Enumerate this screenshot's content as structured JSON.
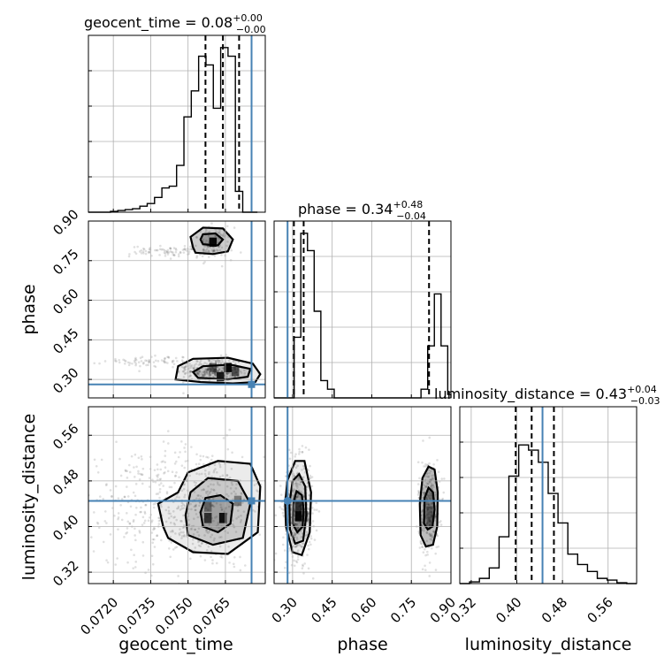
{
  "chart_data": {
    "type": "corner",
    "truth_color": "#4682b4",
    "parameters": [
      {
        "name": "geocent_time",
        "xlabel": "geocent_time",
        "title": {
          "prefix": "geocent_time = ",
          "median": "0.08",
          "plus": "+0.00",
          "minus": "−0.00"
        },
        "range": [
          0.071,
          0.0781
        ],
        "ticks": [
          {
            "v": 0.072,
            "label": "0.0720"
          },
          {
            "v": 0.0735,
            "label": "0.0735"
          },
          {
            "v": 0.075,
            "label": "0.0750"
          },
          {
            "v": 0.0765,
            "label": "0.0765"
          }
        ],
        "quantiles": [
          0.0757,
          0.0764,
          0.07705
        ],
        "truth": 0.07755,
        "hist": [
          0.0,
          0.0,
          0.0,
          0.005,
          0.01,
          0.015,
          0.02,
          0.035,
          0.05,
          0.085,
          0.14,
          0.15,
          0.27,
          0.55,
          0.7,
          0.9,
          0.85,
          0.6,
          0.95,
          0.9,
          0.12,
          0.0,
          0.0
        ],
        "hist_start": 0.071,
        "hist_width": 0.000295
      },
      {
        "name": "phase",
        "xlabel": "phase",
        "title": {
          "prefix": "phase = ",
          "median": "0.34",
          "plus": "+0.48",
          "minus": "−0.04"
        },
        "range": [
          0.23,
          0.9
        ],
        "ticks": [
          {
            "v": 0.3,
            "label": "0.30"
          },
          {
            "v": 0.45,
            "label": "0.45"
          },
          {
            "v": 0.6,
            "label": "0.60"
          },
          {
            "v": 0.75,
            "label": "0.75"
          },
          {
            "v": 0.9,
            "label": "0.90"
          }
        ],
        "quantiles": [
          0.305,
          0.342,
          0.817
        ],
        "truth": 0.281,
        "hist": [
          0.0,
          0.0,
          0.0,
          0.35,
          0.95,
          0.85,
          0.5,
          0.1,
          0.05,
          0.0,
          0.0,
          0.0,
          0.0,
          0.0,
          0.0,
          0.0,
          0.0,
          0.0,
          0.0,
          0.0,
          0.0,
          0.0,
          0.05,
          0.3,
          0.6,
          0.3,
          0.02
        ],
        "hist_start": 0.23,
        "hist_width": 0.0253
      },
      {
        "name": "luminosity_distance",
        "xlabel": "luminosity_distance",
        "title": {
          "prefix": "luminosity_distance = ",
          "median": "0.43",
          "plus": "+0.04",
          "minus": "−0.03"
        },
        "range": [
          0.3,
          0.61
        ],
        "ticks": [
          {
            "v": 0.32,
            "label": "0.32"
          },
          {
            "v": 0.4,
            "label": "0.40"
          },
          {
            "v": 0.48,
            "label": "0.48"
          },
          {
            "v": 0.56,
            "label": "0.56"
          }
        ],
        "quantiles": [
          0.398,
          0.426,
          0.465
        ],
        "truth": 0.445,
        "hist": [
          0.0,
          0.01,
          0.03,
          0.09,
          0.27,
          0.62,
          0.8,
          0.77,
          0.7,
          0.52,
          0.35,
          0.17,
          0.11,
          0.07,
          0.03,
          0.02,
          0.005,
          0.0
        ],
        "hist_start": 0.3,
        "hist_width": 0.01722
      }
    ],
    "pairs": [
      {
        "x": "geocent_time",
        "y": "phase",
        "clusters": [
          {
            "cx": 0.0759,
            "cy": 0.34,
            "sx": 0.0007,
            "sy": 0.022,
            "n": 240
          },
          {
            "cx": 0.0762,
            "cy": 0.325,
            "sx": 0.00045,
            "sy": 0.012,
            "n": 120
          },
          {
            "cx": 0.076,
            "cy": 0.815,
            "sx": 0.0004,
            "sy": 0.03,
            "n": 130
          },
          {
            "cx": 0.0743,
            "cy": 0.785,
            "sx": 0.0008,
            "sy": 0.01,
            "n": 80
          },
          {
            "cx": 0.0735,
            "cy": 0.37,
            "sx": 0.0009,
            "sy": 0.01,
            "n": 70
          }
        ],
        "contours": [
          [
            [
              0.0745,
              0.3
            ],
            [
              0.0755,
              0.29
            ],
            [
              0.0768,
              0.285
            ],
            [
              0.0777,
              0.29
            ],
            [
              0.0779,
              0.32
            ],
            [
              0.0776,
              0.36
            ],
            [
              0.0766,
              0.382
            ],
            [
              0.0752,
              0.378
            ],
            [
              0.0746,
              0.35
            ]
          ],
          [
            [
              0.0754,
              0.306
            ],
            [
              0.0766,
              0.3
            ],
            [
              0.0774,
              0.31
            ],
            [
              0.0775,
              0.34
            ],
            [
              0.0767,
              0.356
            ],
            [
              0.0756,
              0.35
            ],
            [
              0.0752,
              0.328
            ]
          ],
          [
            [
              0.0753,
              0.78
            ],
            [
              0.076,
              0.775
            ],
            [
              0.0766,
              0.785
            ],
            [
              0.0768,
              0.83
            ],
            [
              0.0764,
              0.872
            ],
            [
              0.0756,
              0.875
            ],
            [
              0.0751,
              0.84
            ],
            [
              0.0752,
              0.8
            ]
          ],
          [
            [
              0.0756,
              0.812
            ],
            [
              0.0762,
              0.808
            ],
            [
              0.0764,
              0.83
            ],
            [
              0.0761,
              0.853
            ],
            [
              0.0756,
              0.85
            ],
            [
              0.0755,
              0.83
            ]
          ]
        ],
        "bins": [
          {
            "x": 0.076,
            "y": 0.82,
            "w": 0.0003,
            "h": 0.035,
            "shade": 0.95
          },
          {
            "x": 0.0763,
            "y": 0.31,
            "w": 0.0003,
            "h": 0.035,
            "shade": 0.85
          },
          {
            "x": 0.0766,
            "y": 0.345,
            "w": 0.0003,
            "h": 0.035,
            "shade": 0.95
          },
          {
            "x": 0.0769,
            "y": 0.33,
            "w": 0.0003,
            "h": 0.035,
            "shade": 0.6
          },
          {
            "x": 0.076,
            "y": 0.345,
            "w": 0.0003,
            "h": 0.035,
            "shade": 0.5
          }
        ]
      },
      {
        "x": "geocent_time",
        "y": "luminosity_distance",
        "clusters": [
          {
            "cx": 0.0755,
            "cy": 0.435,
            "sx": 0.00125,
            "sy": 0.055,
            "n": 420
          },
          {
            "cx": 0.073,
            "cy": 0.44,
            "sx": 0.0015,
            "sy": 0.05,
            "n": 200
          }
        ],
        "contours": [
          [
            [
              0.0742,
              0.38
            ],
            [
              0.0752,
              0.355
            ],
            [
              0.0766,
              0.352
            ],
            [
              0.0778,
              0.39
            ],
            [
              0.0779,
              0.47
            ],
            [
              0.0775,
              0.51
            ],
            [
              0.0762,
              0.515
            ],
            [
              0.075,
              0.495
            ],
            [
              0.0746,
              0.46
            ],
            [
              0.0738,
              0.44
            ],
            [
              0.074,
              0.4
            ]
          ],
          [
            [
              0.075,
              0.385
            ],
            [
              0.076,
              0.368
            ],
            [
              0.0772,
              0.38
            ],
            [
              0.0775,
              0.44
            ],
            [
              0.077,
              0.48
            ],
            [
              0.0758,
              0.485
            ],
            [
              0.0751,
              0.46
            ],
            [
              0.0749,
              0.42
            ]
          ],
          [
            [
              0.0756,
              0.4
            ],
            [
              0.0762,
              0.39
            ],
            [
              0.0767,
              0.405
            ],
            [
              0.0768,
              0.44
            ],
            [
              0.0763,
              0.455
            ],
            [
              0.0757,
              0.45
            ],
            [
              0.0755,
              0.425
            ]
          ]
        ],
        "bins": [
          {
            "x": 0.0758,
            "y": 0.415,
            "w": 0.0003,
            "h": 0.018,
            "shade": 0.7
          },
          {
            "x": 0.0764,
            "y": 0.415,
            "w": 0.0003,
            "h": 0.018,
            "shade": 0.9
          },
          {
            "x": 0.077,
            "y": 0.445,
            "w": 0.0003,
            "h": 0.018,
            "shade": 0.4
          },
          {
            "x": 0.0758,
            "y": 0.435,
            "w": 0.0003,
            "h": 0.018,
            "shade": 0.4
          }
        ]
      },
      {
        "x": "phase",
        "y": "luminosity_distance",
        "clusters": [
          {
            "cx": 0.32,
            "cy": 0.43,
            "sx": 0.028,
            "sy": 0.042,
            "n": 520
          },
          {
            "cx": 0.817,
            "cy": 0.435,
            "sx": 0.02,
            "sy": 0.042,
            "n": 320
          }
        ],
        "contours": [
          [
            [
              0.275,
              0.4
            ],
            [
              0.3,
              0.355
            ],
            [
              0.335,
              0.35
            ],
            [
              0.365,
              0.39
            ],
            [
              0.37,
              0.46
            ],
            [
              0.345,
              0.515
            ],
            [
              0.31,
              0.515
            ],
            [
              0.28,
              0.48
            ],
            [
              0.272,
              0.44
            ]
          ],
          [
            [
              0.29,
              0.395
            ],
            [
              0.31,
              0.37
            ],
            [
              0.34,
              0.375
            ],
            [
              0.352,
              0.42
            ],
            [
              0.348,
              0.47
            ],
            [
              0.325,
              0.492
            ],
            [
              0.3,
              0.48
            ],
            [
              0.288,
              0.44
            ]
          ],
          [
            [
              0.3,
              0.405
            ],
            [
              0.318,
              0.39
            ],
            [
              0.338,
              0.4
            ],
            [
              0.342,
              0.43
            ],
            [
              0.335,
              0.455
            ],
            [
              0.315,
              0.462
            ],
            [
              0.302,
              0.44
            ]
          ],
          [
            [
              0.785,
              0.385
            ],
            [
              0.805,
              0.365
            ],
            [
              0.832,
              0.368
            ],
            [
              0.848,
              0.4
            ],
            [
              0.85,
              0.46
            ],
            [
              0.838,
              0.5
            ],
            [
              0.815,
              0.505
            ],
            [
              0.792,
              0.485
            ],
            [
              0.782,
              0.44
            ]
          ],
          [
            [
              0.798,
              0.405
            ],
            [
              0.812,
              0.395
            ],
            [
              0.83,
              0.4
            ],
            [
              0.838,
              0.43
            ],
            [
              0.832,
              0.46
            ],
            [
              0.815,
              0.468
            ],
            [
              0.8,
              0.45
            ]
          ]
        ],
        "bins": [
          {
            "x": 0.322,
            "y": 0.418,
            "w": 0.025,
            "h": 0.018,
            "shade": 0.95
          },
          {
            "x": 0.322,
            "y": 0.436,
            "w": 0.025,
            "h": 0.018,
            "shade": 0.7
          },
          {
            "x": 0.347,
            "y": 0.418,
            "w": 0.025,
            "h": 0.018,
            "shade": 0.45
          },
          {
            "x": 0.82,
            "y": 0.418,
            "w": 0.025,
            "h": 0.035,
            "shade": 0.3
          }
        ],
        "truth_marker": true
      }
    ]
  }
}
